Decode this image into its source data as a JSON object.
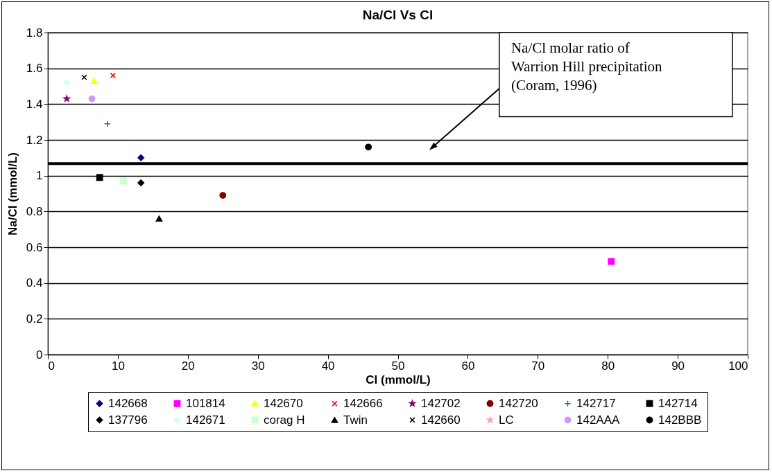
{
  "chart_data": {
    "type": "scatter",
    "title": "Na/Cl Vs Cl",
    "xlabel": "Cl (mmol/L)",
    "ylabel": "Na/Cl (mmol/L)",
    "xlim": [
      0,
      100
    ],
    "xticks": [
      0,
      10,
      20,
      30,
      40,
      50,
      60,
      70,
      80,
      90,
      100
    ],
    "ylim": [
      0,
      1.8
    ],
    "yticks": [
      0,
      0.2,
      0.4,
      0.6,
      0.8,
      1,
      1.2,
      1.4,
      1.6,
      1.8
    ],
    "grid": "y",
    "legend": "bottom",
    "series": [
      {
        "name": "142668",
        "color": "#000080",
        "marker": "diamond",
        "x": [
          13.3
        ],
        "values": [
          1.1
        ]
      },
      {
        "name": "101814",
        "color": "#ff00ff",
        "marker": "square",
        "x": [
          80.5
        ],
        "values": [
          0.52
        ]
      },
      {
        "name": "142670",
        "color": "#ffff00",
        "marker": "triangle",
        "x": [
          6.6
        ],
        "values": [
          1.53
        ]
      },
      {
        "name": "142666",
        "color": "#ff0000",
        "marker": "cross",
        "x": [
          9.3
        ],
        "values": [
          1.56
        ]
      },
      {
        "name": "142702",
        "color": "#800080",
        "marker": "star",
        "x": [
          2.7
        ],
        "values": [
          1.43
        ]
      },
      {
        "name": "142720",
        "color": "#800000",
        "marker": "circle",
        "x": [
          25
        ],
        "values": [
          0.89
        ]
      },
      {
        "name": "142717",
        "color": "#008080",
        "marker": "plus",
        "x": [
          8.5
        ],
        "values": [
          1.29
        ]
      },
      {
        "name": "142714",
        "color": "#000000",
        "marker": "square",
        "x": [
          7.4
        ],
        "values": [
          0.99
        ]
      },
      {
        "name": "137796",
        "color": "#000000",
        "marker": "diamond",
        "x": [
          13.3
        ],
        "values": [
          0.96
        ]
      },
      {
        "name": "142671",
        "color": "#ccffff",
        "marker": "diamond",
        "x": [
          2.7
        ],
        "values": [
          1.52
        ]
      },
      {
        "name": "corag H",
        "color": "#ccffcc",
        "marker": "square",
        "x": [
          10.8
        ],
        "values": [
          0.97
        ]
      },
      {
        "name": "Twin",
        "color": "#000000",
        "marker": "triangle",
        "x": [
          15.9
        ],
        "values": [
          0.76
        ]
      },
      {
        "name": "142660",
        "color": "#000000",
        "marker": "cross",
        "x": [
          5.2
        ],
        "values": [
          1.55
        ]
      },
      {
        "name": "LC",
        "color": "#ff99cc",
        "marker": "star"
      },
      {
        "name": "142AAA",
        "color": "#cc99ff",
        "marker": "circle",
        "x": [
          6.3
        ],
        "values": [
          1.43
        ]
      },
      {
        "name": "142BBB",
        "color": "#000000",
        "marker": "circle",
        "x": [
          45.8
        ],
        "values": [
          1.16
        ]
      }
    ],
    "ref_lines": [
      {
        "axis": "y",
        "value": 1.067,
        "color": "#000000"
      }
    ],
    "annotations": [
      {
        "text": "Na/Cl molar ratio of\nWarrion Hill precipitation\n(Coram, 1996)",
        "x": 55,
        "y": 1.16
      }
    ]
  }
}
